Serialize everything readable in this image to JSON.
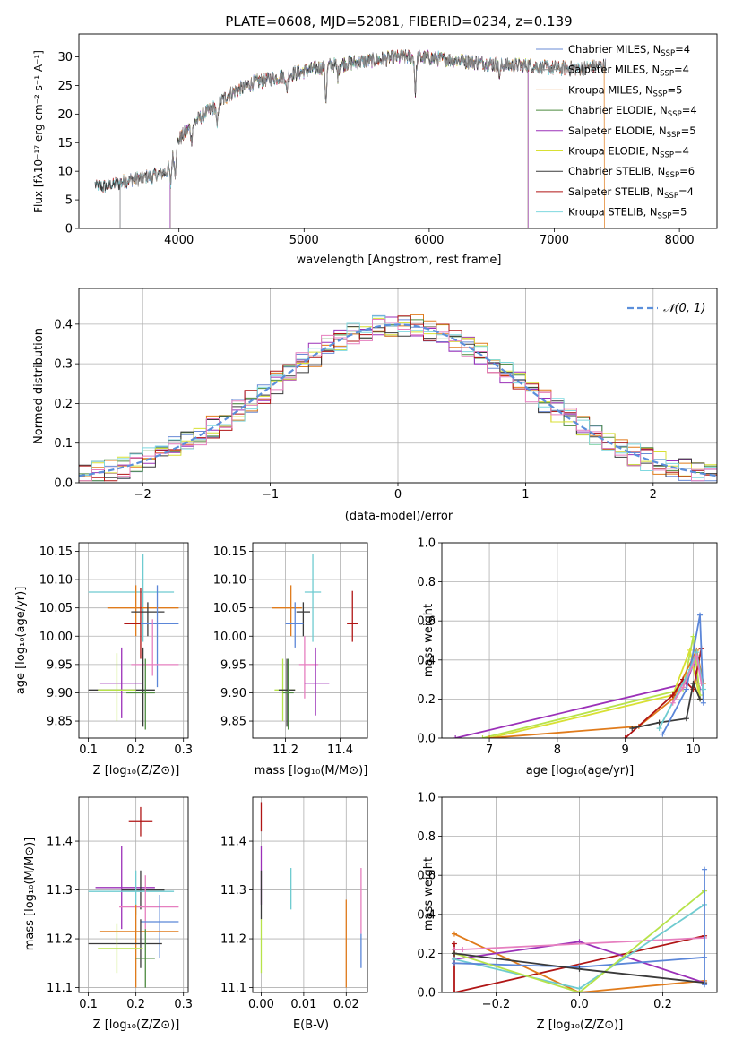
{
  "colors": {
    "Chabrier MILES": "#6a8bd6",
    "Salpeter MILES": "#8c8c8c",
    "Kroupa MILES": "#e07b1b",
    "Chabrier ELODIE": "#4c8a3f",
    "Salpeter ELODIE": "#9b30b8",
    "Kroupa ELODIE": "#d8e033",
    "Chabrier STELIB": "#3a3a3a",
    "Salpeter STELIB": "#b01515",
    "Kroupa STELIB": "#7fd8df",
    "pink": "#e67fbf",
    "lime": "#b7e34a",
    "blue": "#5b86d8",
    "teal": "#6ecbd0",
    "gauss": "#5b8fdb"
  },
  "chart_data": [
    {
      "id": "spectrum",
      "type": "line",
      "title": "PLATE=0608, MJD=52081, FIBERID=0234, z=0.139",
      "xlabel": "wavelength [Angstrom, rest frame]",
      "ylabel": "Flux [fλ10⁻¹⁷ erg cm⁻² s⁻¹ A⁻¹]",
      "xlim": [
        3200,
        8300
      ],
      "ylim": [
        0,
        34
      ],
      "xticks": [
        "4000",
        "5000",
        "6000",
        "7000",
        "8000"
      ],
      "yticks": [
        "0",
        "5",
        "10",
        "15",
        "20",
        "25",
        "30"
      ],
      "legend": [
        "Chabrier MILES, N_SSP=4",
        "Salpeter MILES, N_SSP=4",
        "Kroupa MILES, N_SSP=5",
        "Chabrier ELODIE, N_SSP=4",
        "Salpeter ELODIE, N_SSP=5",
        "Kroupa ELODIE, N_SSP=4",
        "Chabrier STELIB, N_SSP=6",
        "Salpeter STELIB, N_SSP=4",
        "Kroupa STELIB, N_SSP=5"
      ],
      "legend_position": "top-right",
      "continuum": {
        "x": [
          3330,
          3400,
          3500,
          3600,
          3700,
          3800,
          3900,
          4000,
          4100,
          4200,
          4300,
          4400,
          4500,
          4600,
          4800,
          5000,
          5200,
          5400,
          5600,
          5800,
          6000,
          6200,
          6400,
          6600,
          6800,
          7000,
          7200,
          7400
        ],
        "y": [
          7.5,
          7.3,
          7.8,
          8.5,
          8.8,
          9.2,
          9.8,
          15.5,
          18,
          20,
          21.5,
          23.5,
          24.5,
          25.5,
          26.5,
          27.5,
          28.5,
          29,
          29.5,
          30,
          29.8,
          29.5,
          29,
          28.5,
          28.5,
          28,
          28,
          28.5
        ]
      }
    },
    {
      "id": "residuals",
      "type": "line",
      "xlabel": "(data-model)/error",
      "ylabel": "Normed distribution",
      "xlim": [
        -2.5,
        2.5
      ],
      "ylim": [
        0,
        0.49
      ],
      "xticks": [
        "−2",
        "−1",
        "0",
        "1",
        "2"
      ],
      "yticks": [
        "0.0",
        "0.1",
        "0.2",
        "0.3",
        "0.4"
      ],
      "legend": [
        "𝒩(0, 1)"
      ],
      "legend_position": "top-right",
      "grid": true
    },
    {
      "id": "age-vs-Z",
      "type": "scatter",
      "xlabel": "Z [log₁₀(Z/Z⊙)]",
      "ylabel": "age  [log₁₀(age/yr)]",
      "xlim": [
        0.08,
        0.31
      ],
      "ylim": [
        9.82,
        10.165
      ],
      "xticks": [
        "0.1",
        "0.2",
        "0.3"
      ],
      "yticks": [
        "9.85",
        "9.90",
        "9.95",
        "10.00",
        "10.05",
        "10.10",
        "10.15"
      ],
      "grid": true,
      "points": [
        {
          "color": "teal",
          "x": 0.215,
          "y": 10.078,
          "xerr": [
            0.1,
            0.28
          ],
          "yerr": [
            9.99,
            10.145
          ]
        },
        {
          "color": "Kroupa MILES",
          "x": 0.2,
          "y": 10.05,
          "xerr": [
            0.14,
            0.29
          ],
          "yerr": [
            10.0,
            10.09
          ]
        },
        {
          "color": "Chabrier STELIB",
          "x": 0.225,
          "y": 10.043,
          "xerr": [
            0.19,
            0.26
          ],
          "yerr": [
            10.0,
            10.06
          ]
        },
        {
          "color": "Salpeter STELIB",
          "x": 0.21,
          "y": 10.022,
          "xerr": [
            0.175,
            0.235
          ],
          "yerr": [
            9.96,
            10.085
          ]
        },
        {
          "color": "blue",
          "x": 0.245,
          "y": 10.022,
          "xerr": [
            0.21,
            0.29
          ],
          "yerr": [
            9.91,
            10.09
          ]
        },
        {
          "color": "pink",
          "x": 0.235,
          "y": 9.95,
          "xerr": [
            0.19,
            0.29
          ],
          "yerr": [
            9.93,
            10.03
          ]
        },
        {
          "color": "Salpeter ELODIE",
          "x": 0.17,
          "y": 9.917,
          "xerr": [
            0.125,
            0.215
          ],
          "yerr": [
            9.855,
            9.98
          ]
        },
        {
          "color": "Chabrier STELIB",
          "x": 0.215,
          "y": 9.905,
          "xerr": [
            0.1,
            0.24
          ],
          "yerr": [
            9.84,
            9.98
          ]
        },
        {
          "color": "lime",
          "x": 0.16,
          "y": 9.905,
          "xerr": [
            0.12,
            0.2
          ],
          "yerr": [
            9.85,
            9.97
          ]
        },
        {
          "color": "Chabrier ELODIE",
          "x": 0.22,
          "y": 9.9,
          "xerr": [
            0.18,
            0.24
          ],
          "yerr": [
            9.835,
            9.96
          ]
        }
      ]
    },
    {
      "id": "age-vs-mass",
      "type": "scatter",
      "xlabel": "mass [log₁₀(M/M⊙)]",
      "xlim": [
        11.08,
        11.5
      ],
      "ylim": [
        9.82,
        10.165
      ],
      "xticks": [
        "11.2",
        "11.4"
      ],
      "yticks": [
        "9.85",
        "9.90",
        "9.95",
        "10.00",
        "10.05",
        "10.10",
        "10.15"
      ],
      "grid": true,
      "points": [
        {
          "color": "teal",
          "x": 11.3,
          "y": 10.078,
          "xerr": [
            11.27,
            11.33
          ],
          "yerr": [
            9.99,
            10.145
          ]
        },
        {
          "color": "Kroupa MILES",
          "x": 11.22,
          "y": 10.05,
          "xerr": [
            11.15,
            11.26
          ],
          "yerr": [
            10.0,
            10.09
          ]
        },
        {
          "color": "Chabrier STELIB",
          "x": 11.265,
          "y": 10.043,
          "xerr": [
            11.24,
            11.29
          ],
          "yerr": [
            10.0,
            10.06
          ]
        },
        {
          "color": "Salpeter STELIB",
          "x": 11.445,
          "y": 10.022,
          "xerr": [
            11.425,
            11.465
          ],
          "yerr": [
            9.99,
            10.08
          ]
        },
        {
          "color": "blue",
          "x": 11.235,
          "y": 10.022,
          "xerr": [
            11.2,
            11.265
          ],
          "yerr": [
            9.98,
            10.06
          ]
        },
        {
          "color": "pink",
          "x": 11.27,
          "y": 9.95,
          "xerr": [
            11.25,
            11.32
          ],
          "yerr": [
            9.89,
            10.0
          ]
        },
        {
          "color": "Salpeter ELODIE",
          "x": 11.31,
          "y": 9.917,
          "xerr": [
            11.27,
            11.36
          ],
          "yerr": [
            9.86,
            9.98
          ]
        },
        {
          "color": "lime",
          "x": 11.19,
          "y": 9.905,
          "xerr": [
            11.16,
            11.235
          ],
          "yerr": [
            9.85,
            9.96
          ]
        },
        {
          "color": "Chabrier STELIB",
          "x": 11.205,
          "y": 9.905,
          "xerr": [
            11.175,
            11.235
          ],
          "yerr": [
            9.84,
            9.96
          ]
        },
        {
          "color": "Chabrier ELODIE",
          "x": 11.21,
          "y": 9.9,
          "xerr": [
            11.19,
            11.23
          ],
          "yerr": [
            9.835,
            9.96
          ]
        }
      ]
    },
    {
      "id": "massweight-vs-age",
      "type": "line",
      "xlabel": "age  [log₁₀(age/yr)]",
      "ylabel": "mass weight",
      "xlim": [
        6.3,
        10.35
      ],
      "ylim": [
        0,
        1.0
      ],
      "xticks": [
        "7",
        "8",
        "9",
        "10"
      ],
      "yticks": [
        "0.0",
        "0.2",
        "0.4",
        "0.6",
        "0.8",
        "1.0"
      ],
      "grid": true,
      "series": [
        {
          "color": "Salpeter ELODIE",
          "x": [
            6.5,
            9.9,
            10.0,
            10.1
          ],
          "y": [
            0.0,
            0.28,
            0.38,
            0.25
          ]
        },
        {
          "color": "lime",
          "x": [
            6.9,
            9.85,
            10.0,
            10.1
          ],
          "y": [
            0.0,
            0.25,
            0.52,
            0.22
          ]
        },
        {
          "color": "Kroupa ELODIE",
          "x": [
            7.0,
            9.7,
            9.95,
            10.1
          ],
          "y": [
            0.0,
            0.22,
            0.45,
            0.2
          ]
        },
        {
          "color": "Kroupa MILES",
          "x": [
            7.0,
            9.2,
            9.7,
            10.05,
            10.15
          ],
          "y": [
            0.0,
            0.06,
            0.2,
            0.45,
            0.28
          ]
        },
        {
          "color": "Salpeter STELIB",
          "x": [
            9.0,
            9.7,
            9.85,
            10.0,
            10.12
          ],
          "y": [
            0.0,
            0.22,
            0.3,
            0.25,
            0.46
          ]
        },
        {
          "color": "Chabrier STELIB",
          "x": [
            9.1,
            9.5,
            9.9,
            10.0,
            10.1
          ],
          "y": [
            0.05,
            0.08,
            0.1,
            0.28,
            0.2
          ]
        },
        {
          "color": "blue",
          "x": [
            9.55,
            9.9,
            10.1,
            10.15
          ],
          "y": [
            0.02,
            0.25,
            0.63,
            0.18
          ]
        },
        {
          "color": "teal",
          "x": [
            9.5,
            9.95,
            10.05,
            10.15
          ],
          "y": [
            0.05,
            0.35,
            0.44,
            0.25
          ]
        },
        {
          "color": "pink",
          "x": [
            9.7,
            9.85,
            10.05,
            10.12
          ],
          "y": [
            0.18,
            0.26,
            0.42,
            0.28
          ]
        }
      ]
    },
    {
      "id": "mass-vs-Z",
      "type": "scatter",
      "xlabel": "Z [log₁₀(Z/Z⊙)]",
      "ylabel": "mass [log₁₀(M/M⊙)]",
      "xlim": [
        0.08,
        0.31
      ],
      "ylim": [
        11.09,
        11.49
      ],
      "xticks": [
        "0.1",
        "0.2",
        "0.3"
      ],
      "yticks": [
        "11.1",
        "11.2",
        "11.3",
        "11.4"
      ],
      "grid": true,
      "points": [
        {
          "color": "Salpeter STELIB",
          "x": 0.21,
          "y": 11.44,
          "xerr": [
            0.185,
            0.235
          ],
          "yerr": [
            11.41,
            11.47
          ]
        },
        {
          "color": "Salpeter ELODIE",
          "x": 0.17,
          "y": 11.305,
          "xerr": [
            0.115,
            0.24
          ],
          "yerr": [
            11.22,
            11.39
          ]
        },
        {
          "color": "Chabrier STELIB",
          "x": 0.21,
          "y": 11.3,
          "xerr": [
            0.17,
            0.26
          ],
          "yerr": [
            11.26,
            11.34
          ]
        },
        {
          "color": "teal",
          "x": 0.2,
          "y": 11.297,
          "xerr": [
            0.1,
            0.28
          ],
          "yerr": [
            11.25,
            11.34
          ]
        },
        {
          "color": "pink",
          "x": 0.22,
          "y": 11.265,
          "xerr": [
            0.165,
            0.29
          ],
          "yerr": [
            11.22,
            11.33
          ]
        },
        {
          "color": "blue",
          "x": 0.25,
          "y": 11.235,
          "xerr": [
            0.21,
            0.29
          ],
          "yerr": [
            11.16,
            11.29
          ]
        },
        {
          "color": "Kroupa MILES",
          "x": 0.2,
          "y": 11.215,
          "xerr": [
            0.125,
            0.29
          ],
          "yerr": [
            11.1,
            11.27
          ]
        },
        {
          "color": "Chabrier STELIB",
          "x": 0.21,
          "y": 11.19,
          "xerr": [
            0.1,
            0.255
          ],
          "yerr": [
            11.14,
            11.24
          ]
        },
        {
          "color": "lime",
          "x": 0.16,
          "y": 11.18,
          "xerr": [
            0.12,
            0.215
          ],
          "yerr": [
            11.13,
            11.23
          ]
        },
        {
          "color": "Chabrier ELODIE",
          "x": 0.22,
          "y": 11.16,
          "xerr": [
            0.2,
            0.24
          ],
          "yerr": [
            11.1,
            11.22
          ]
        }
      ]
    },
    {
      "id": "mass-vs-EBV",
      "type": "scatter",
      "xlabel": "E(B-V)",
      "xlim": [
        -0.002,
        0.025
      ],
      "ylim": [
        11.09,
        11.49
      ],
      "xticks": [
        "0.00",
        "0.01",
        "0.02"
      ],
      "yticks": [
        "11.1",
        "11.2",
        "11.3",
        "11.4"
      ],
      "grid": true,
      "points": [
        {
          "color": "Salpeter STELIB",
          "x": 0.0,
          "y": 11.45,
          "yerr": [
            11.42,
            11.48
          ]
        },
        {
          "color": "Salpeter ELODIE",
          "x": 0.0,
          "y": 11.33,
          "yerr": [
            11.27,
            11.39
          ]
        },
        {
          "color": "Chabrier STELIB",
          "x": 0.0,
          "y": 11.29,
          "yerr": [
            11.24,
            11.34
          ]
        },
        {
          "color": "lime",
          "x": 0.0,
          "y": 11.18,
          "yerr": [
            11.13,
            11.24
          ]
        },
        {
          "color": "teal",
          "x": 0.007,
          "y": 11.3,
          "yerr": [
            11.26,
            11.345
          ]
        },
        {
          "color": "Kroupa MILES",
          "x": 0.02,
          "y": 11.19,
          "yerr": [
            11.1,
            11.28
          ]
        },
        {
          "color": "pink",
          "x": 0.0235,
          "y": 11.28,
          "yerr": [
            11.21,
            11.345
          ]
        },
        {
          "color": "blue",
          "x": 0.0235,
          "y": 11.17,
          "yerr": [
            11.14,
            11.21
          ]
        }
      ]
    },
    {
      "id": "massweight-vs-Z",
      "type": "line",
      "xlabel": "Z [log₁₀(Z/Z⊙)]",
      "ylabel": "mass weight",
      "xlim": [
        -0.33,
        0.33
      ],
      "ylim": [
        0,
        1.0
      ],
      "xticks": [
        "−0.2",
        "0.0",
        "0.2"
      ],
      "yticks": [
        "0.0",
        "0.2",
        "0.4",
        "0.6",
        "0.8",
        "1.0"
      ],
      "grid": true,
      "series": [
        {
          "color": "Salpeter STELIB",
          "x": [
            -0.3,
            -0.3,
            0.3
          ],
          "y": [
            0.25,
            0.0,
            0.29
          ]
        },
        {
          "color": "Kroupa MILES",
          "x": [
            -0.3,
            0.0,
            0.3
          ],
          "y": [
            0.3,
            0.0,
            0.06
          ]
        },
        {
          "color": "Salpeter ELODIE",
          "x": [
            -0.3,
            0.0,
            0.3
          ],
          "y": [
            0.17,
            0.26,
            0.05
          ]
        },
        {
          "color": "pink",
          "x": [
            -0.3,
            -0.28,
            0.3
          ],
          "y": [
            0.22,
            0.22,
            0.28
          ]
        },
        {
          "color": "teal",
          "x": [
            -0.3,
            0.0,
            0.3
          ],
          "y": [
            0.17,
            0.02,
            0.45
          ]
        },
        {
          "color": "blue",
          "x": [
            -0.3,
            0.0,
            0.3
          ],
          "y": [
            0.15,
            0.13,
            0.18
          ]
        },
        {
          "color": "lime",
          "x": [
            -0.3,
            0.0,
            0.3
          ],
          "y": [
            0.2,
            0.0,
            0.52
          ]
        },
        {
          "color": "Chabrier STELIB",
          "x": [
            -0.3,
            0.0,
            0.3
          ],
          "y": [
            0.2,
            0.12,
            0.05
          ]
        },
        {
          "color": "blue",
          "x": [
            0.3,
            0.3
          ],
          "y": [
            0.04,
            0.63
          ]
        }
      ]
    }
  ]
}
